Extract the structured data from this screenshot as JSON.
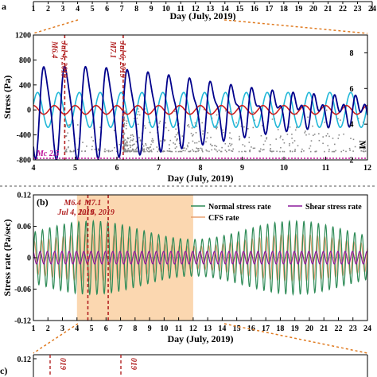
{
  "figure": {
    "top_axis": {
      "ticks": [
        "1",
        "2",
        "3",
        "4",
        "5",
        "6",
        "7",
        "8",
        "9",
        "10",
        "11",
        "12",
        "13",
        "14",
        "15",
        "16",
        "17",
        "18",
        "19",
        "20",
        "21",
        "22",
        "23",
        "24"
      ],
      "xlabel": "Day (July, 2019)"
    },
    "panel_a": {
      "ylabel": "Stress (Pa)",
      "y2label": "M",
      "xlabel": "Day (July, 2019)",
      "x_ticks": [
        "4",
        "5",
        "6",
        "7",
        "8",
        "9",
        "10",
        "11",
        "12"
      ],
      "y_ticks": [
        "1200",
        "800",
        "400",
        "0",
        "-400",
        "-800"
      ],
      "y2_ticks": [
        "8",
        "6",
        "4",
        "2"
      ],
      "events": [
        {
          "magnitude": "M6.4",
          "date": "Jul 4, 2019"
        },
        {
          "magnitude": "M7.1",
          "date": "Jul 6, 2019"
        }
      ],
      "mc_label": "Mc 2.5"
    },
    "panel_b": {
      "label": "(b)",
      "ylabel": "Stress rate (Pa/sec)",
      "xlabel": "Day (July, 2019)",
      "x_ticks": [
        "1",
        "2",
        "3",
        "4",
        "5",
        "6",
        "7",
        "8",
        "9",
        "10",
        "11",
        "12",
        "13",
        "14",
        "15",
        "16",
        "17",
        "18",
        "19",
        "20",
        "21",
        "22",
        "23",
        "24"
      ],
      "y_ticks": [
        "0.12",
        "0.06",
        "0",
        "-0.06",
        "-0.12"
      ],
      "events": [
        {
          "magnitude": "M6.4",
          "date": "Jul 4, 2019"
        },
        {
          "magnitude": "M7.1",
          "date": "Jul 6, 2019"
        }
      ],
      "legend": [
        "Normal stress rate",
        "Shear stress rate",
        "CFS rate"
      ]
    },
    "panel_c": {
      "label": "c)",
      "y_ticks": [
        "0.12"
      ],
      "date_fragments": [
        "019",
        "019"
      ]
    }
  },
  "chart_data": [
    {
      "type": "line",
      "panel": "a",
      "xlabel": "Day (July, 2019)",
      "ylabel": "Stress (Pa)",
      "xlim": [
        4,
        12
      ],
      "ylim": [
        -800,
        1200
      ],
      "y2label": "M",
      "y2lim": [
        2,
        9
      ],
      "colors": {
        "navy": "#00008b",
        "cyan": "#22b8d8",
        "red": "#cc1f1f",
        "seismicity": "#8a8a8a",
        "event_line": "#b22222",
        "mc_line": "#c0129a"
      },
      "curves": [
        {
          "color": "navy",
          "amplitude": [
            850,
            400
          ],
          "period_days": 0.5,
          "peak_day": 4.78
        },
        {
          "color": "cyan",
          "amplitude": 300,
          "period_days": 0.5,
          "peak_day": 4.6
        },
        {
          "color": "red",
          "amplitude": 70,
          "period_days": 0.5,
          "peak_day": 4.5
        }
      ],
      "events": [
        {
          "x": 4.75,
          "magnitude": 6.4
        },
        {
          "x": 6.15,
          "magnitude": 7.1
        }
      ],
      "mc": 2.5
    },
    {
      "type": "line",
      "panel": "b",
      "xlabel": "Day (July, 2019)",
      "ylabel": "Stress rate (Pa/sec)",
      "xlim": [
        1,
        24
      ],
      "ylim": [
        -0.12,
        0.12
      ],
      "shaded_x": [
        4,
        12
      ],
      "colors": {
        "normal": "#2e8b57",
        "shear": "#8b1a9b",
        "cfs": "#e8a070",
        "shade": "#fbd7b0",
        "event_line": "#b22222"
      },
      "series": [
        {
          "name": "Normal stress rate",
          "amplitude": 0.07,
          "period_days": 0.5
        },
        {
          "name": "Shear stress rate",
          "amplitude": 0.012,
          "period_days": 0.5
        },
        {
          "name": "CFS rate",
          "amplitude": 0.045,
          "period_days": 0.5
        }
      ],
      "events": [
        {
          "x": 4.75,
          "magnitude": 6.4
        },
        {
          "x": 6.15,
          "magnitude": 7.1
        }
      ]
    }
  ]
}
